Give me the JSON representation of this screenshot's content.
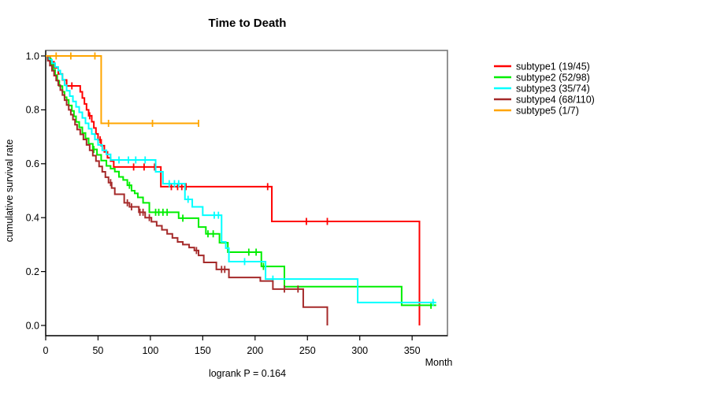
{
  "chart_data": {
    "type": "line",
    "subtype": "kaplan-meier-step-curves",
    "title": "Time to Death",
    "xlabel": "Month",
    "ylabel": "cumulative survival rate",
    "footnote": "logrank P = 0.164",
    "logrank_p": 0.164,
    "xlim": [
      0,
      384
    ],
    "ylim": [
      0,
      1.04
    ],
    "grid": false,
    "legend_position": "right-outside",
    "xticks": {
      "values": [
        0,
        50,
        100,
        150,
        200,
        250,
        300,
        350
      ],
      "labels": [
        "0",
        "50",
        "100",
        "150",
        "200",
        "250",
        "300",
        "350"
      ]
    },
    "yticks": {
      "values": [
        0.0,
        0.2,
        0.4,
        0.6,
        0.8,
        1.0
      ],
      "labels": [
        "0.0",
        "0.2",
        "0.4",
        "0.6",
        "0.8",
        "1.0"
      ]
    },
    "series": [
      {
        "name": "subtype1",
        "label": "subtype1 (19/45)",
        "events": 19,
        "n": 45,
        "color": "#ff0000",
        "points": [
          [
            0,
            1
          ],
          [
            4,
            0.978
          ],
          [
            8,
            0.956
          ],
          [
            12,
            0.933
          ],
          [
            16,
            0.911
          ],
          [
            20,
            0.889
          ],
          [
            33,
            0.867
          ],
          [
            35,
            0.844
          ],
          [
            37,
            0.822
          ],
          [
            39,
            0.8
          ],
          [
            41,
            0.778
          ],
          [
            44,
            0.756
          ],
          [
            46,
            0.733
          ],
          [
            48,
            0.711
          ],
          [
            50,
            0.689
          ],
          [
            53,
            0.667
          ],
          [
            56,
            0.644
          ],
          [
            59,
            0.622
          ],
          [
            62,
            0.61
          ],
          [
            65,
            0.588
          ],
          [
            110,
            0.515
          ],
          [
            216,
            0.386
          ],
          [
            357,
            0
          ]
        ],
        "censors": [
          25,
          42,
          52,
          84,
          94,
          104,
          120,
          126,
          130,
          134,
          212,
          249,
          269
        ],
        "extend_to": null
      },
      {
        "name": "subtype2",
        "label": "subtype2 (52/98)",
        "events": 52,
        "n": 98,
        "color": "#00ee00",
        "points": [
          [
            0,
            1
          ],
          [
            2,
            0.99
          ],
          [
            5,
            0.969
          ],
          [
            7,
            0.949
          ],
          [
            9,
            0.929
          ],
          [
            11,
            0.908
          ],
          [
            13,
            0.888
          ],
          [
            16,
            0.867
          ],
          [
            18,
            0.847
          ],
          [
            20,
            0.837
          ],
          [
            22,
            0.816
          ],
          [
            25,
            0.796
          ],
          [
            27,
            0.776
          ],
          [
            29,
            0.755
          ],
          [
            32,
            0.735
          ],
          [
            35,
            0.714
          ],
          [
            38,
            0.694
          ],
          [
            41,
            0.674
          ],
          [
            45,
            0.653
          ],
          [
            49,
            0.633
          ],
          [
            53,
            0.612
          ],
          [
            58,
            0.592
          ],
          [
            62,
            0.582
          ],
          [
            66,
            0.571
          ],
          [
            70,
            0.551
          ],
          [
            74,
            0.54
          ],
          [
            78,
            0.52
          ],
          [
            82,
            0.5
          ],
          [
            85,
            0.49
          ],
          [
            88,
            0.475
          ],
          [
            93,
            0.455
          ],
          [
            99,
            0.42
          ],
          [
            127,
            0.398
          ],
          [
            146,
            0.365
          ],
          [
            153,
            0.34
          ],
          [
            166,
            0.307
          ],
          [
            174,
            0.272
          ],
          [
            206,
            0.219
          ],
          [
            228,
            0.144
          ],
          [
            340,
            0.075
          ]
        ],
        "censors": [
          46,
          80,
          105,
          108,
          112,
          116,
          131,
          155,
          160,
          194,
          201,
          208,
          368
        ],
        "extend_to": 373
      },
      {
        "name": "subtype3",
        "label": "subtype3 (35/74)",
        "events": 35,
        "n": 74,
        "color": "#00ffff",
        "points": [
          [
            0,
            1
          ],
          [
            3,
            0.986
          ],
          [
            6,
            0.973
          ],
          [
            9,
            0.959
          ],
          [
            12,
            0.946
          ],
          [
            14,
            0.932
          ],
          [
            16,
            0.912
          ],
          [
            18,
            0.891
          ],
          [
            20,
            0.871
          ],
          [
            23,
            0.851
          ],
          [
            26,
            0.831
          ],
          [
            29,
            0.811
          ],
          [
            32,
            0.791
          ],
          [
            35,
            0.77
          ],
          [
            38,
            0.75
          ],
          [
            41,
            0.73
          ],
          [
            44,
            0.71
          ],
          [
            47,
            0.69
          ],
          [
            50,
            0.67
          ],
          [
            54,
            0.65
          ],
          [
            58,
            0.635
          ],
          [
            62,
            0.614
          ],
          [
            105,
            0.57
          ],
          [
            112,
            0.526
          ],
          [
            133,
            0.468
          ],
          [
            140,
            0.44
          ],
          [
            150,
            0.409
          ],
          [
            168,
            0.31
          ],
          [
            172,
            0.287
          ],
          [
            175,
            0.237
          ],
          [
            210,
            0.172
          ],
          [
            298,
            0.085
          ]
        ],
        "censors": [
          70,
          79,
          86,
          95,
          118,
          123,
          127,
          136,
          161,
          165,
          190,
          217,
          370
        ],
        "extend_to": 373
      },
      {
        "name": "subtype4",
        "label": "subtype4 (68/110)",
        "events": 68,
        "n": 110,
        "color": "#a52a2a",
        "points": [
          [
            0,
            1
          ],
          [
            2,
            0.982
          ],
          [
            4,
            0.964
          ],
          [
            6,
            0.945
          ],
          [
            8,
            0.927
          ],
          [
            10,
            0.909
          ],
          [
            12,
            0.891
          ],
          [
            14,
            0.873
          ],
          [
            16,
            0.855
          ],
          [
            18,
            0.836
          ],
          [
            20,
            0.818
          ],
          [
            22,
            0.8
          ],
          [
            24,
            0.782
          ],
          [
            26,
            0.764
          ],
          [
            28,
            0.745
          ],
          [
            30,
            0.727
          ],
          [
            33,
            0.709
          ],
          [
            36,
            0.69
          ],
          [
            39,
            0.67
          ],
          [
            42,
            0.65
          ],
          [
            45,
            0.63
          ],
          [
            48,
            0.61
          ],
          [
            51,
            0.59
          ],
          [
            54,
            0.57
          ],
          [
            57,
            0.55
          ],
          [
            60,
            0.53
          ],
          [
            63,
            0.51
          ],
          [
            66,
            0.487
          ],
          [
            75,
            0.455
          ],
          [
            80,
            0.44
          ],
          [
            89,
            0.42
          ],
          [
            95,
            0.4
          ],
          [
            101,
            0.385
          ],
          [
            106,
            0.37
          ],
          [
            111,
            0.355
          ],
          [
            116,
            0.34
          ],
          [
            121,
            0.325
          ],
          [
            126,
            0.31
          ],
          [
            131,
            0.3
          ],
          [
            137,
            0.289
          ],
          [
            142,
            0.278
          ],
          [
            146,
            0.26
          ],
          [
            151,
            0.234
          ],
          [
            163,
            0.208
          ],
          [
            175,
            0.178
          ],
          [
            205,
            0.165
          ],
          [
            217,
            0.135
          ],
          [
            246,
            0.068
          ],
          [
            269,
            0
          ]
        ],
        "censors": [
          62,
          78,
          82,
          90,
          93,
          99,
          144,
          168,
          171,
          228,
          241
        ],
        "extend_to": null
      },
      {
        "name": "subtype5",
        "label": "subtype5 (1/7)",
        "events": 1,
        "n": 7,
        "color": "#ffa500",
        "points": [
          [
            0,
            1
          ],
          [
            53,
            0.75
          ]
        ],
        "censors": [
          10,
          24,
          47,
          60,
          102,
          146
        ],
        "extend_to": 146
      }
    ]
  }
}
